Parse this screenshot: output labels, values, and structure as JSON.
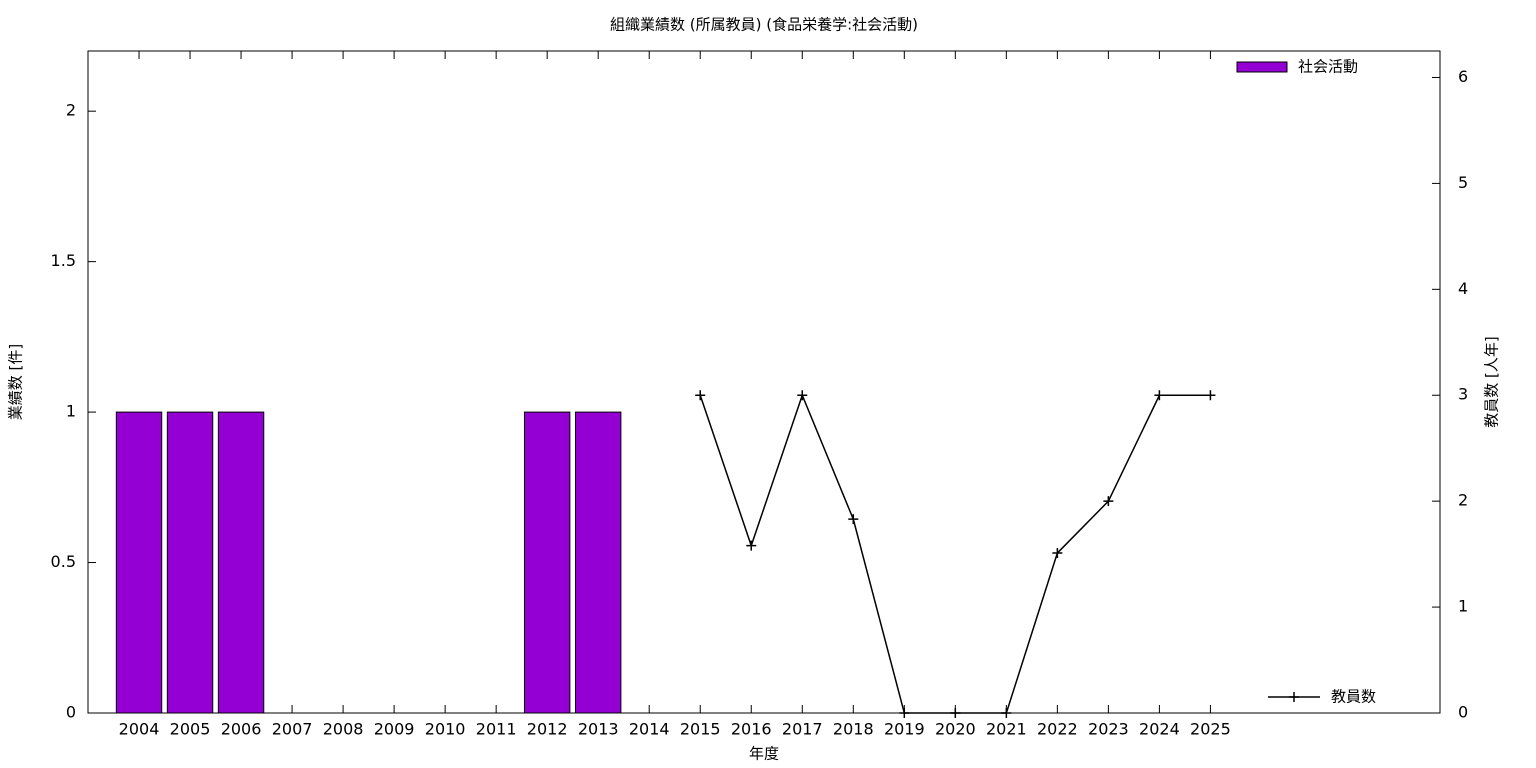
{
  "chart_data": {
    "type": "bar",
    "title": "組織業績数 (所属教員) (食品栄養学:社会活動)",
    "x_label": "年度",
    "y_label": "業績数 [件]",
    "y2_label": "教員数 [人年]",
    "categories": [
      "2004",
      "2005",
      "2006",
      "2007",
      "2008",
      "2009",
      "2010",
      "2011",
      "2012",
      "2013",
      "2014",
      "2015",
      "2016",
      "2017",
      "2018",
      "2019",
      "2020",
      "2021",
      "2022",
      "2023",
      "2024",
      "2025"
    ],
    "series": [
      {
        "name": "社会活動",
        "type": "bar",
        "color": "#9400d3",
        "axis": "y",
        "values": [
          1,
          1,
          1,
          0,
          0,
          0,
          0,
          0,
          1,
          1,
          0,
          0,
          0,
          0,
          0,
          0,
          0,
          0,
          0,
          0,
          0,
          0
        ]
      },
      {
        "name": "教員数",
        "type": "line",
        "color": "#000000",
        "axis": "y2",
        "values": [
          null,
          null,
          null,
          null,
          null,
          null,
          null,
          null,
          null,
          null,
          null,
          3,
          1.58,
          3,
          1.83,
          0,
          0,
          0,
          1.51,
          2,
          3,
          3
        ]
      }
    ],
    "ylim": [
      0,
      2.2
    ],
    "yticks": [
      0,
      0.5,
      1,
      1.5,
      2
    ],
    "y2lim": [
      0,
      6.25
    ],
    "y2ticks": [
      0,
      1,
      2,
      3,
      4,
      5,
      6
    ],
    "grid": false
  }
}
